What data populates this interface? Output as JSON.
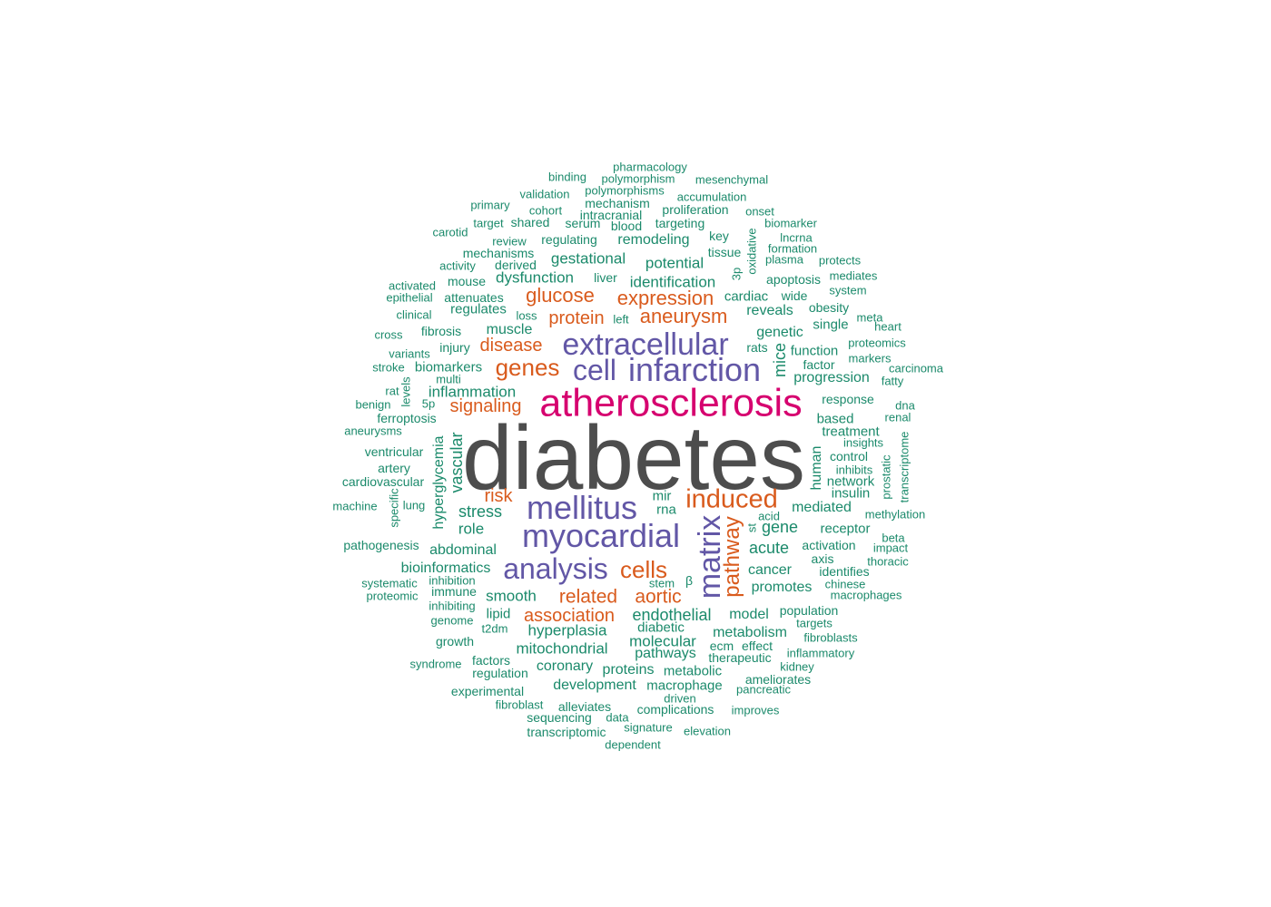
{
  "colors": {
    "grey": "#4d4d4d",
    "magenta": "#d6006f",
    "purple": "#6257a6",
    "orange": "#d95b1d",
    "teal": "#1b8a6b"
  },
  "words": [
    {
      "text": "diabetes",
      "color": "grey"
    },
    {
      "text": "atherosclerosis",
      "color": "magenta"
    },
    {
      "text": "extracellular",
      "color": "purple"
    },
    {
      "text": "infarction",
      "color": "purple"
    },
    {
      "text": "cell",
      "color": "purple"
    },
    {
      "text": "mellitus",
      "color": "purple"
    },
    {
      "text": "myocardial",
      "color": "purple"
    },
    {
      "text": "analysis",
      "color": "purple"
    },
    {
      "text": "matrix",
      "color": "purple"
    },
    {
      "text": "induced",
      "color": "orange"
    },
    {
      "text": "genes",
      "color": "orange"
    },
    {
      "text": "cells",
      "color": "orange"
    },
    {
      "text": "pathway",
      "color": "orange"
    },
    {
      "text": "glucose",
      "color": "orange"
    },
    {
      "text": "expression",
      "color": "orange"
    },
    {
      "text": "aneurysm",
      "color": "orange"
    },
    {
      "text": "protein",
      "color": "orange"
    },
    {
      "text": "disease",
      "color": "orange"
    },
    {
      "text": "signaling",
      "color": "orange"
    },
    {
      "text": "risk",
      "color": "orange"
    },
    {
      "text": "association",
      "color": "orange"
    },
    {
      "text": "related",
      "color": "orange"
    },
    {
      "text": "aortic",
      "color": "orange"
    },
    {
      "text": "pharmacology",
      "color": "teal"
    },
    {
      "text": "binding",
      "color": "teal"
    },
    {
      "text": "polymorphism",
      "color": "teal"
    },
    {
      "text": "mesenchymal",
      "color": "teal"
    },
    {
      "text": "validation",
      "color": "teal"
    },
    {
      "text": "polymorphisms",
      "color": "teal"
    },
    {
      "text": "accumulation",
      "color": "teal"
    },
    {
      "text": "primary",
      "color": "teal"
    },
    {
      "text": "mechanism",
      "color": "teal"
    },
    {
      "text": "cohort",
      "color": "teal"
    },
    {
      "text": "intracranial",
      "color": "teal"
    },
    {
      "text": "proliferation",
      "color": "teal"
    },
    {
      "text": "onset",
      "color": "teal"
    },
    {
      "text": "target",
      "color": "teal"
    },
    {
      "text": "shared",
      "color": "teal"
    },
    {
      "text": "serum",
      "color": "teal"
    },
    {
      "text": "blood",
      "color": "teal"
    },
    {
      "text": "targeting",
      "color": "teal"
    },
    {
      "text": "biomarker",
      "color": "teal"
    },
    {
      "text": "carotid",
      "color": "teal"
    },
    {
      "text": "review",
      "color": "teal"
    },
    {
      "text": "regulating",
      "color": "teal"
    },
    {
      "text": "remodeling",
      "color": "teal"
    },
    {
      "text": "key",
      "color": "teal"
    },
    {
      "text": "oxidative",
      "color": "teal"
    },
    {
      "text": "lncrna",
      "color": "teal"
    },
    {
      "text": "mechanisms",
      "color": "teal"
    },
    {
      "text": "tissue",
      "color": "teal"
    },
    {
      "text": "formation",
      "color": "teal"
    },
    {
      "text": "activity",
      "color": "teal"
    },
    {
      "text": "derived",
      "color": "teal"
    },
    {
      "text": "gestational",
      "color": "teal"
    },
    {
      "text": "potential",
      "color": "teal"
    },
    {
      "text": "plasma",
      "color": "teal"
    },
    {
      "text": "protects",
      "color": "teal"
    },
    {
      "text": "mouse",
      "color": "teal"
    },
    {
      "text": "dysfunction",
      "color": "teal"
    },
    {
      "text": "liver",
      "color": "teal"
    },
    {
      "text": "identification",
      "color": "teal"
    },
    {
      "text": "3p",
      "color": "teal"
    },
    {
      "text": "apoptosis",
      "color": "teal"
    },
    {
      "text": "mediates",
      "color": "teal"
    },
    {
      "text": "activated",
      "color": "teal"
    },
    {
      "text": "system",
      "color": "teal"
    },
    {
      "text": "epithelial",
      "color": "teal"
    },
    {
      "text": "attenuates",
      "color": "teal"
    },
    {
      "text": "cardiac",
      "color": "teal"
    },
    {
      "text": "wide",
      "color": "teal"
    },
    {
      "text": "regulates",
      "color": "teal"
    },
    {
      "text": "obesity",
      "color": "teal"
    },
    {
      "text": "clinical",
      "color": "teal"
    },
    {
      "text": "loss",
      "color": "teal"
    },
    {
      "text": "left",
      "color": "teal"
    },
    {
      "text": "reveals",
      "color": "teal"
    },
    {
      "text": "meta",
      "color": "teal"
    },
    {
      "text": "single",
      "color": "teal"
    },
    {
      "text": "heart",
      "color": "teal"
    },
    {
      "text": "fibrosis",
      "color": "teal"
    },
    {
      "text": "muscle",
      "color": "teal"
    },
    {
      "text": "genetic",
      "color": "teal"
    },
    {
      "text": "cross",
      "color": "teal"
    },
    {
      "text": "proteomics",
      "color": "teal"
    },
    {
      "text": "injury",
      "color": "teal"
    },
    {
      "text": "rats",
      "color": "teal"
    },
    {
      "text": "function",
      "color": "teal"
    },
    {
      "text": "variants",
      "color": "teal"
    },
    {
      "text": "markers",
      "color": "teal"
    },
    {
      "text": "mice",
      "color": "teal"
    },
    {
      "text": "factor",
      "color": "teal"
    },
    {
      "text": "stroke",
      "color": "teal"
    },
    {
      "text": "biomarkers",
      "color": "teal"
    },
    {
      "text": "carcinoma",
      "color": "teal"
    },
    {
      "text": "multi",
      "color": "teal"
    },
    {
      "text": "progression",
      "color": "teal"
    },
    {
      "text": "fatty",
      "color": "teal"
    },
    {
      "text": "rat",
      "color": "teal"
    },
    {
      "text": "levels",
      "color": "teal"
    },
    {
      "text": "inflammation",
      "color": "teal"
    },
    {
      "text": "response",
      "color": "teal"
    },
    {
      "text": "benign",
      "color": "teal"
    },
    {
      "text": "5p",
      "color": "teal"
    },
    {
      "text": "dna",
      "color": "teal"
    },
    {
      "text": "ferroptosis",
      "color": "teal"
    },
    {
      "text": "based",
      "color": "teal"
    },
    {
      "text": "renal",
      "color": "teal"
    },
    {
      "text": "aneurysms",
      "color": "teal"
    },
    {
      "text": "treatment",
      "color": "teal"
    },
    {
      "text": "insights",
      "color": "teal"
    },
    {
      "text": "transcriptome",
      "color": "teal"
    },
    {
      "text": "hyperglycemia",
      "color": "teal"
    },
    {
      "text": "vascular",
      "color": "teal"
    },
    {
      "text": "ventricular",
      "color": "teal"
    },
    {
      "text": "control",
      "color": "teal"
    },
    {
      "text": "artery",
      "color": "teal"
    },
    {
      "text": "human",
      "color": "teal"
    },
    {
      "text": "inhibits",
      "color": "teal"
    },
    {
      "text": "prostatic",
      "color": "teal"
    },
    {
      "text": "cardiovascular",
      "color": "teal"
    },
    {
      "text": "network",
      "color": "teal"
    },
    {
      "text": "specific",
      "color": "teal"
    },
    {
      "text": "mir",
      "color": "teal"
    },
    {
      "text": "insulin",
      "color": "teal"
    },
    {
      "text": "machine",
      "color": "teal"
    },
    {
      "text": "lung",
      "color": "teal"
    },
    {
      "text": "rna",
      "color": "teal"
    },
    {
      "text": "mediated",
      "color": "teal"
    },
    {
      "text": "stress",
      "color": "teal"
    },
    {
      "text": "methylation",
      "color": "teal"
    },
    {
      "text": "acid",
      "color": "teal"
    },
    {
      "text": "st",
      "color": "teal"
    },
    {
      "text": "role",
      "color": "teal"
    },
    {
      "text": "gene",
      "color": "teal"
    },
    {
      "text": "receptor",
      "color": "teal"
    },
    {
      "text": "pathogenesis",
      "color": "teal"
    },
    {
      "text": "beta",
      "color": "teal"
    },
    {
      "text": "abdominal",
      "color": "teal"
    },
    {
      "text": "acute",
      "color": "teal"
    },
    {
      "text": "activation",
      "color": "teal"
    },
    {
      "text": "impact",
      "color": "teal"
    },
    {
      "text": "axis",
      "color": "teal"
    },
    {
      "text": "thoracic",
      "color": "teal"
    },
    {
      "text": "bioinformatics",
      "color": "teal"
    },
    {
      "text": "cancer",
      "color": "teal"
    },
    {
      "text": "identifies",
      "color": "teal"
    },
    {
      "text": "systematic",
      "color": "teal"
    },
    {
      "text": "inhibition",
      "color": "teal"
    },
    {
      "text": "stem",
      "color": "teal"
    },
    {
      "text": "β",
      "color": "teal"
    },
    {
      "text": "chinese",
      "color": "teal"
    },
    {
      "text": "immune",
      "color": "teal"
    },
    {
      "text": "promotes",
      "color": "teal"
    },
    {
      "text": "proteomic",
      "color": "teal"
    },
    {
      "text": "smooth",
      "color": "teal"
    },
    {
      "text": "macrophages",
      "color": "teal"
    },
    {
      "text": "inhibiting",
      "color": "teal"
    },
    {
      "text": "population",
      "color": "teal"
    },
    {
      "text": "lipid",
      "color": "teal"
    },
    {
      "text": "endothelial",
      "color": "teal"
    },
    {
      "text": "model",
      "color": "teal"
    },
    {
      "text": "genome",
      "color": "teal"
    },
    {
      "text": "targets",
      "color": "teal"
    },
    {
      "text": "t2dm",
      "color": "teal"
    },
    {
      "text": "hyperplasia",
      "color": "teal"
    },
    {
      "text": "diabetic",
      "color": "teal"
    },
    {
      "text": "metabolism",
      "color": "teal"
    },
    {
      "text": "fibroblasts",
      "color": "teal"
    },
    {
      "text": "molecular",
      "color": "teal"
    },
    {
      "text": "growth",
      "color": "teal"
    },
    {
      "text": "ecm",
      "color": "teal"
    },
    {
      "text": "effect",
      "color": "teal"
    },
    {
      "text": "mitochondrial",
      "color": "teal"
    },
    {
      "text": "inflammatory",
      "color": "teal"
    },
    {
      "text": "pathways",
      "color": "teal"
    },
    {
      "text": "factors",
      "color": "teal"
    },
    {
      "text": "therapeutic",
      "color": "teal"
    },
    {
      "text": "syndrome",
      "color": "teal"
    },
    {
      "text": "coronary",
      "color": "teal"
    },
    {
      "text": "kidney",
      "color": "teal"
    },
    {
      "text": "regulation",
      "color": "teal"
    },
    {
      "text": "proteins",
      "color": "teal"
    },
    {
      "text": "metabolic",
      "color": "teal"
    },
    {
      "text": "ameliorates",
      "color": "teal"
    },
    {
      "text": "development",
      "color": "teal"
    },
    {
      "text": "macrophage",
      "color": "teal"
    },
    {
      "text": "pancreatic",
      "color": "teal"
    },
    {
      "text": "experimental",
      "color": "teal"
    },
    {
      "text": "driven",
      "color": "teal"
    },
    {
      "text": "fibroblast",
      "color": "teal"
    },
    {
      "text": "alleviates",
      "color": "teal"
    },
    {
      "text": "complications",
      "color": "teal"
    },
    {
      "text": "improves",
      "color": "teal"
    },
    {
      "text": "sequencing",
      "color": "teal"
    },
    {
      "text": "data",
      "color": "teal"
    },
    {
      "text": "signature",
      "color": "teal"
    },
    {
      "text": "elevation",
      "color": "teal"
    },
    {
      "text": "transcriptomic",
      "color": "teal"
    },
    {
      "text": "dependent",
      "color": "teal"
    }
  ]
}
